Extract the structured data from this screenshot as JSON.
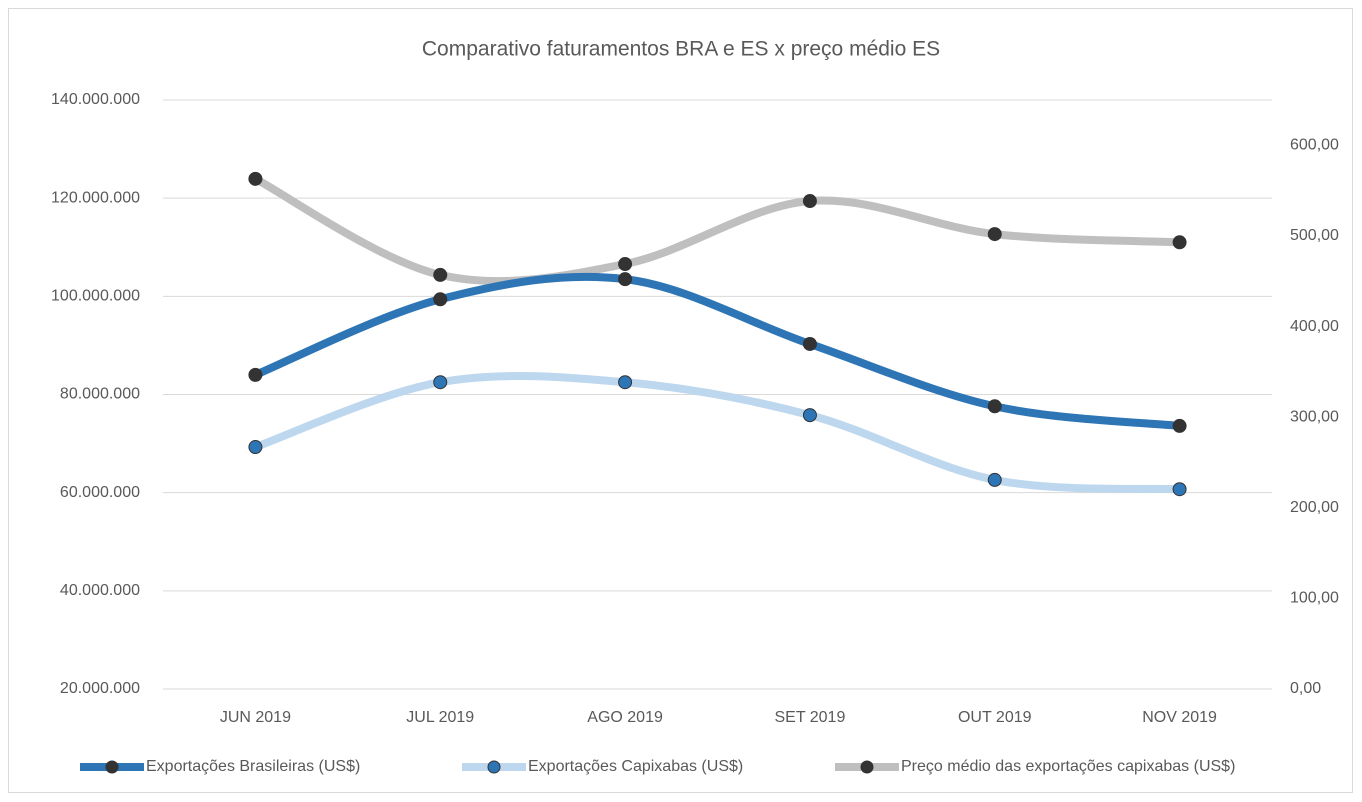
{
  "chart_data": {
    "type": "line",
    "title": "Comparativo faturamentos BRA e ES x preço médio ES",
    "categories": [
      "JUN 2019",
      "JUL 2019",
      "AGO 2019",
      "SET 2019",
      "OUT 2019",
      "NOV 2019"
    ],
    "series": [
      {
        "name": "Exportações Brasileiras (US$)",
        "color": "#2e75b6",
        "marker_color": "#333333",
        "values": [
          84000000,
          99400000,
          103500000,
          90300000,
          77600000,
          73600000
        ]
      },
      {
        "name": "Exportações Capixabas (US$)",
        "color": "#bdd7ee",
        "marker_color": "#2e75b6",
        "values": [
          69300000,
          82500000,
          82500000,
          75800000,
          62600000,
          60700000
        ]
      },
      {
        "name": "Preço médio das exportações capixabas (US$)",
        "color": "#bfbfbf",
        "marker_color": "#333333",
        "axis": "y2",
        "values": [
          563,
          457,
          469,
          538.5,
          502,
          493
        ]
      }
    ],
    "ylim": [
      20000000,
      140000000
    ],
    "yticks": [
      {
        "value": 20000000,
        "label": "20.000.000"
      },
      {
        "value": 40000000,
        "label": "40.000.000"
      },
      {
        "value": 60000000,
        "label": "60.000.000"
      },
      {
        "value": 80000000,
        "label": "80.000.000"
      },
      {
        "value": 100000000,
        "label": "100.000.000"
      },
      {
        "value": 120000000,
        "label": "120.000.000"
      },
      {
        "value": 140000000,
        "label": "140.000.000"
      }
    ],
    "y2lim": [
      0,
      650
    ],
    "y2ticks": [
      {
        "value": 0,
        "label": "0,00"
      },
      {
        "value": 100,
        "label": "100,00"
      },
      {
        "value": 200,
        "label": "200,00"
      },
      {
        "value": 300,
        "label": "300,00"
      },
      {
        "value": 400,
        "label": "400,00"
      },
      {
        "value": 500,
        "label": "500,00"
      },
      {
        "value": 600,
        "label": "600,00"
      }
    ],
    "grid": true,
    "smooth": true,
    "legend": "bottom"
  }
}
